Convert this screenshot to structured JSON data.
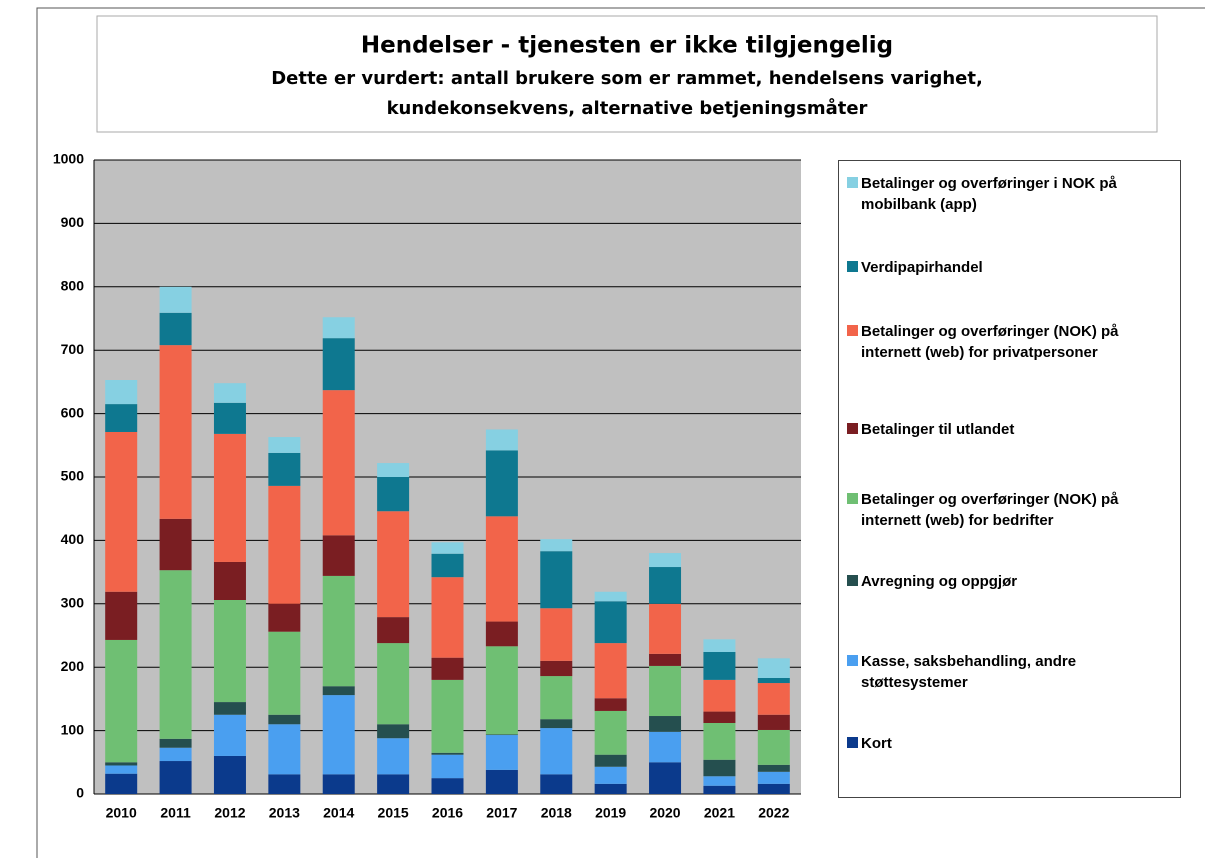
{
  "chart_data": {
    "type": "stacked_bar",
    "title": "Hendelser - tjenesten er ikke tilgjengelig",
    "subtitle": "Dette er vurdert: antall brukere som er rammet, hendelsens varighet, kundekonsekvens, alternative betjeningsmåter",
    "categories": [
      "2010",
      "2011",
      "2012",
      "2013",
      "2014",
      "2015",
      "2016",
      "2017",
      "2018",
      "2019",
      "2020",
      "2021",
      "2022"
    ],
    "series": [
      {
        "name": "Kort",
        "color": "#0b3a8c",
        "values": [
          32,
          52,
          60,
          31,
          31,
          31,
          25,
          38,
          31,
          16,
          50,
          13,
          16
        ]
      },
      {
        "name": "Kasse, saksbehandling, andre støttesystemer",
        "color": "#4a9ff0",
        "values": [
          13,
          21,
          65,
          79,
          125,
          57,
          37,
          55,
          73,
          27,
          48,
          15,
          19
        ]
      },
      {
        "name": "Avregning og oppgjør",
        "color": "#254f4f",
        "values": [
          5,
          14,
          20,
          15,
          14,
          22,
          3,
          1,
          14,
          19,
          25,
          26,
          11
        ]
      },
      {
        "name": "Betalinger og overføringer (NOK) på internett (web) for bedrifter",
        "color": "#6fbf73",
        "values": [
          193,
          266,
          161,
          131,
          174,
          128,
          115,
          139,
          68,
          69,
          79,
          58,
          55
        ]
      },
      {
        "name": "Betalinger til utlandet",
        "color": "#7a1e22",
        "values": [
          76,
          81,
          60,
          44,
          64,
          41,
          35,
          39,
          24,
          20,
          19,
          18,
          24
        ]
      },
      {
        "name": "Betalinger og overføringer (NOK) på internett (web) for privatpersoner",
        "color": "#f2644a",
        "values": [
          252,
          274,
          202,
          186,
          229,
          167,
          127,
          166,
          83,
          87,
          79,
          50,
          50
        ]
      },
      {
        "name": "Verdipapirhandel",
        "color": "#0e7890",
        "values": [
          44,
          51,
          49,
          52,
          82,
          54,
          37,
          104,
          90,
          66,
          58,
          44,
          8
        ]
      },
      {
        "name": "Betalinger og overføringer i NOK på mobilbank (app)",
        "color": "#86d0e2",
        "values": [
          38,
          41,
          31,
          25,
          33,
          22,
          18,
          33,
          19,
          15,
          22,
          20,
          31
        ]
      }
    ],
    "ylim": [
      0,
      1000
    ],
    "yticks": [
      0,
      100,
      200,
      300,
      400,
      500,
      600,
      700,
      800,
      900,
      1000
    ],
    "grid": true
  }
}
